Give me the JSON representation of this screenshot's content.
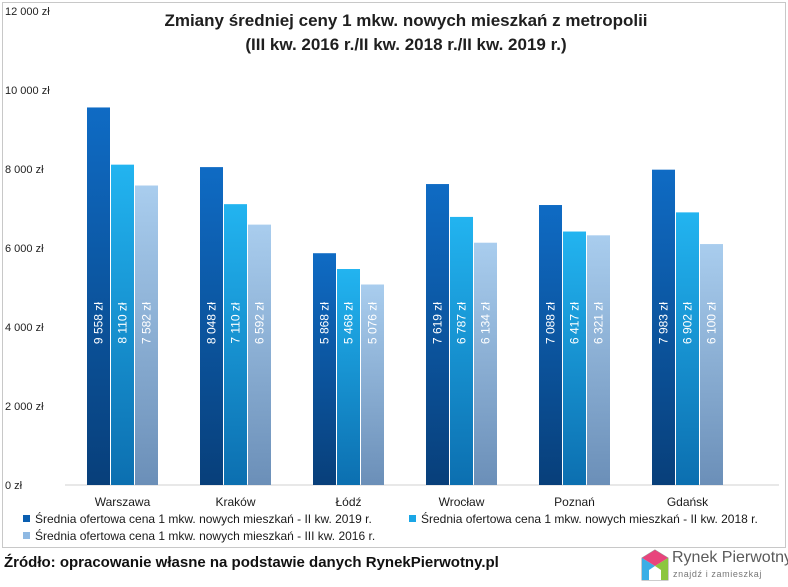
{
  "chart_data": {
    "type": "bar",
    "title_line1": "Zmiany średniej ceny 1 mkw. nowych mieszkań z metropolii",
    "title_line2": "(III kw. 2016 r./II kw. 2018 r./II kw. 2019 r.)",
    "categories": [
      "Warszawa",
      "Kraków",
      "Łódź",
      "Wrocław",
      "Poznań",
      "Gdańsk"
    ],
    "series": [
      {
        "name": "Średnia ofertowa cena 1 mkw. nowych mieszkań - II kw. 2019 r.",
        "values": [
          9558,
          8048,
          5868,
          7619,
          7088,
          7983
        ],
        "labels": [
          "9 558 zł",
          "8 048 zł",
          "5 868 zł",
          "7 619 zł",
          "7 088 zł",
          "7 983 zł"
        ],
        "color": "#0a5eb0"
      },
      {
        "name": "Średnia ofertowa cena 1 mkw. nowych mieszkań - II kw. 2018 r.",
        "values": [
          8110,
          7110,
          5468,
          6787,
          6417,
          6902
        ],
        "labels": [
          "8 110 zł",
          "7 110 zł",
          "5 468 zł",
          "6 787 zł",
          "6 417 zł",
          "6 902 zł"
        ],
        "color": "#1aa6e6"
      },
      {
        "name": "Średnia ofertowa cena 1 mkw. nowych mieszkań - III kw. 2016 r.",
        "values": [
          7582,
          6592,
          5076,
          6134,
          6321,
          6100
        ],
        "labels": [
          "7 582 zł",
          "6 592 zł",
          "5 076 zł",
          "6 134 zł",
          "6 321 zł",
          "6 100 zł"
        ],
        "color": "#8fb9e3"
      }
    ],
    "yticks": [
      0,
      2000,
      4000,
      6000,
      8000,
      10000,
      12000
    ],
    "ytick_labels": [
      "0 zł",
      "2 000 zł",
      "4 000 zł",
      "6 000 zł",
      "8 000 zł",
      "10 000 zł",
      "12 000 zł"
    ],
    "ylim": [
      0,
      12000
    ],
    "grid": false,
    "legend_position": "bottom"
  },
  "source_text": "Źródło: opracowanie własne na podstawie danych RynekPierwotny.pl",
  "logo": {
    "name": "Rynek Pierwotny",
    "tagline": "znajdź i zamieszkaj"
  }
}
